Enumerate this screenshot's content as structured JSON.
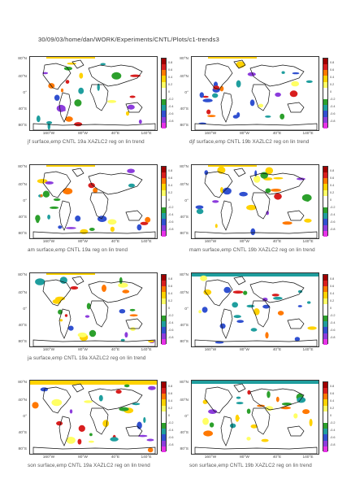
{
  "header": "30/09/03/home/dan/WORK/Experiments/CNTL/Plots/c1-trends3",
  "lat_labels": [
    "80°N",
    "40°N",
    "0°",
    "40°S",
    "80°S"
  ],
  "lon_labels": [
    "160°W",
    "80°W",
    "40°E",
    "140°E"
  ],
  "colorbar_labels": [
    "0.8",
    "0.6",
    "0.4",
    "0.2",
    "0",
    "-0.2",
    "-0.4",
    "-0.6",
    "-0.8"
  ],
  "colorbar_colors": [
    "#a00000",
    "#d81e1e",
    "#ff7800",
    "#ffd200",
    "#ffff64",
    "#ffffff",
    "#ffffff",
    "#2ca02c",
    "#1f9e9e",
    "#3050d0",
    "#8c3cdc",
    "#e632e6"
  ],
  "panels": [
    {
      "caption": "jf surface,emp CNTL 19a XAZLC2 reg on lin trend"
    },
    {
      "caption": "djf surface,emp CNTL 19b XAZLC2 reg on lin trend"
    },
    {
      "caption": "am surface,emp CNTL 19a reg on lin trend"
    },
    {
      "caption": "mam surface,emp CNTL 19b XAZLC2 reg on lin trend"
    },
    {
      "caption": "ja surface,emp CNTL 19a XAZLC2 reg on lin trend"
    },
    {
      "caption": ""
    },
    {
      "caption": "son surface,emp CNTL 19a XAZLC2 reg on lin trend"
    },
    {
      "caption": "son surface,emp CNTL 19b XAZLC2 reg on lin trend"
    }
  ]
}
